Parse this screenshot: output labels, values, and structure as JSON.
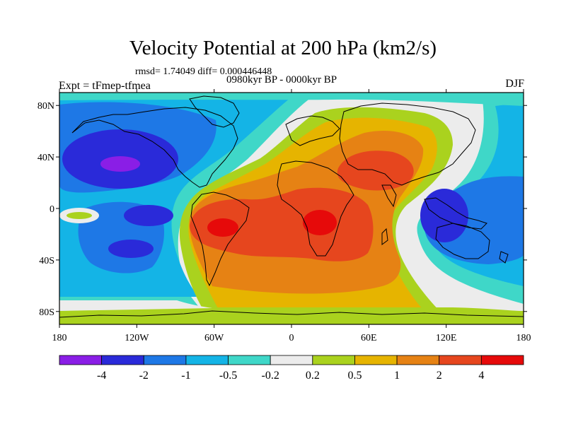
{
  "header": {
    "title": "Velocity Potential at 200 hPa (km2/s)",
    "stats": "rmsd= 1.74049 diff= 0.000446448",
    "experiment": "Expt = tFmep-tfmea",
    "period": "0980kyr BP - 0000kyr BP",
    "season": "DJF"
  },
  "axes": {
    "lat_ticks": [
      {
        "value": 80,
        "label": "80N"
      },
      {
        "value": 40,
        "label": "40N"
      },
      {
        "value": 0,
        "label": "0"
      },
      {
        "value": -40,
        "label": "40S"
      },
      {
        "value": -80,
        "label": "80S"
      }
    ],
    "lon_ticks": [
      {
        "value": -180,
        "label": "180"
      },
      {
        "value": -120,
        "label": "120W"
      },
      {
        "value": -60,
        "label": "60W"
      },
      {
        "value": 0,
        "label": "0"
      },
      {
        "value": 60,
        "label": "60E"
      },
      {
        "value": 120,
        "label": "120E"
      },
      {
        "value": 180,
        "label": "180"
      }
    ]
  },
  "colorbar": {
    "colors": [
      "#8a1ee6",
      "#2a2ad9",
      "#1e78e6",
      "#14b4e6",
      "#3fd7c8",
      "#ececec",
      "#aad21e",
      "#e6b400",
      "#e68214",
      "#e6461e",
      "#e60a0a"
    ],
    "labels": [
      "-4",
      "-2",
      "-1",
      "-0.5",
      "-0.2",
      "0.2",
      "0.5",
      "1",
      "2",
      "4"
    ]
  }
}
